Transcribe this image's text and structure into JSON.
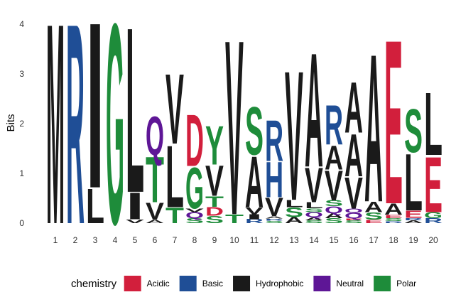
{
  "chart_data": {
    "type": "sequence-logo",
    "ylabel": "Bits",
    "xlabel": "",
    "ylim": [
      0,
      4
    ],
    "y_ticks": [
      "0",
      "1",
      "2",
      "3",
      "4"
    ],
    "positions": [
      "1",
      "2",
      "3",
      "4",
      "5",
      "6",
      "7",
      "8",
      "9",
      "10",
      "11",
      "12",
      "13",
      "14",
      "15",
      "16",
      "17",
      "18",
      "19",
      "20"
    ],
    "legend": {
      "title": "chemistry",
      "position": "bottom",
      "entries": [
        {
          "label": "Acidic",
          "color": "#D21F3C"
        },
        {
          "label": "Basic",
          "color": "#1F4E96"
        },
        {
          "label": "Hydrophobic",
          "color": "#1A1A1A"
        },
        {
          "label": "Neutral",
          "color": "#5E1696"
        },
        {
          "label": "Polar",
          "color": "#1E8C3A"
        }
      ]
    },
    "stacks": [
      [
        {
          "letter": "M",
          "bits": 4.15,
          "chem": "Hydrophobic"
        }
      ],
      [
        {
          "letter": "R",
          "bits": 4.15,
          "chem": "Basic"
        }
      ],
      [
        {
          "letter": "L",
          "bits": 0.72,
          "chem": "Hydrophobic"
        },
        {
          "letter": "I",
          "bits": 3.43,
          "chem": "Hydrophobic"
        }
      ],
      [
        {
          "letter": "G",
          "bits": 4.15,
          "chem": "Polar"
        }
      ],
      [
        {
          "letter": "V",
          "bits": 0.08,
          "chem": "Hydrophobic"
        },
        {
          "letter": "I",
          "bits": 0.55,
          "chem": "Hydrophobic"
        },
        {
          "letter": "L",
          "bits": 3.42,
          "chem": "Hydrophobic"
        }
      ],
      [
        {
          "letter": "A",
          "bits": 0.07,
          "chem": "Hydrophobic"
        },
        {
          "letter": "V",
          "bits": 0.35,
          "chem": "Hydrophobic"
        },
        {
          "letter": "T",
          "bits": 0.95,
          "chem": "Polar"
        },
        {
          "letter": "Q",
          "bits": 0.8,
          "chem": "Neutral"
        }
      ],
      [
        {
          "letter": "T",
          "bits": 0.32,
          "chem": "Polar"
        },
        {
          "letter": "L",
          "bits": 1.28,
          "chem": "Hydrophobic"
        },
        {
          "letter": "V",
          "bits": 1.45,
          "chem": "Hydrophobic"
        }
      ],
      [
        {
          "letter": "S",
          "bits": 0.1,
          "chem": "Polar"
        },
        {
          "letter": "Q",
          "bits": 0.12,
          "chem": "Neutral"
        },
        {
          "letter": "V",
          "bits": 0.08,
          "chem": "Hydrophobic"
        },
        {
          "letter": "G",
          "bits": 0.85,
          "chem": "Polar"
        },
        {
          "letter": "D",
          "bits": 1.07,
          "chem": "Acidic"
        }
      ],
      [
        {
          "letter": "S",
          "bits": 0.15,
          "chem": "Polar"
        },
        {
          "letter": "D",
          "bits": 0.18,
          "chem": "Acidic"
        },
        {
          "letter": "T",
          "bits": 0.22,
          "chem": "Polar"
        },
        {
          "letter": "V",
          "bits": 0.63,
          "chem": "Hydrophobic"
        },
        {
          "letter": "Y",
          "bits": 0.8,
          "chem": "Polar"
        }
      ],
      [
        {
          "letter": "T",
          "bits": 0.18,
          "chem": "Polar"
        },
        {
          "letter": "V",
          "bits": 3.62,
          "chem": "Hydrophobic"
        }
      ],
      [
        {
          "letter": "R",
          "bits": 0.08,
          "chem": "Basic"
        },
        {
          "letter": "I",
          "bits": 0.1,
          "chem": "Hydrophobic"
        },
        {
          "letter": "V",
          "bits": 0.15,
          "chem": "Hydrophobic"
        },
        {
          "letter": "A",
          "bits": 1.05,
          "chem": "Hydrophobic"
        },
        {
          "letter": "S",
          "bits": 0.99,
          "chem": "Polar"
        }
      ],
      [
        {
          "letter": "S",
          "bits": 0.05,
          "chem": "Polar"
        },
        {
          "letter": "R",
          "bits": 0.04,
          "chem": "Basic"
        },
        {
          "letter": "A",
          "bits": 0.05,
          "chem": "Hydrophobic"
        },
        {
          "letter": "V",
          "bits": 0.38,
          "chem": "Hydrophobic"
        },
        {
          "letter": "H",
          "bits": 0.73,
          "chem": "Basic"
        },
        {
          "letter": "R",
          "bits": 0.85,
          "chem": "Basic"
        }
      ],
      [
        {
          "letter": "A",
          "bits": 0.12,
          "chem": "Hydrophobic"
        },
        {
          "letter": "S",
          "bits": 0.2,
          "chem": "Polar"
        },
        {
          "letter": "L",
          "bits": 0.15,
          "chem": "Hydrophobic"
        },
        {
          "letter": "V",
          "bits": 2.68,
          "chem": "Hydrophobic"
        }
      ],
      [
        {
          "letter": "S",
          "bits": 0.06,
          "chem": "Polar"
        },
        {
          "letter": "A",
          "bits": 0.06,
          "chem": "Hydrophobic"
        },
        {
          "letter": "Q",
          "bits": 0.1,
          "chem": "Neutral"
        },
        {
          "letter": "S",
          "bits": 0.08,
          "chem": "Polar"
        },
        {
          "letter": "L",
          "bits": 0.12,
          "chem": "Hydrophobic"
        },
        {
          "letter": "V",
          "bits": 0.72,
          "chem": "Hydrophobic"
        },
        {
          "letter": "A",
          "bits": 2.36,
          "chem": "Hydrophobic"
        }
      ],
      [
        {
          "letter": "S",
          "bits": 0.1,
          "chem": "Polar"
        },
        {
          "letter": "A",
          "bits": 0.1,
          "chem": "Hydrophobic"
        },
        {
          "letter": "Q",
          "bits": 0.14,
          "chem": "Neutral"
        },
        {
          "letter": "S",
          "bits": 0.12,
          "chem": "Polar"
        },
        {
          "letter": "V",
          "bits": 0.62,
          "chem": "Hydrophobic"
        },
        {
          "letter": "A",
          "bits": 0.5,
          "chem": "Hydrophobic"
        },
        {
          "letter": "R",
          "bits": 0.82,
          "chem": "Basic"
        }
      ],
      [
        {
          "letter": "S",
          "bits": 0.06,
          "chem": "Polar"
        },
        {
          "letter": "E",
          "bits": 0.04,
          "chem": "Acidic"
        },
        {
          "letter": "Q",
          "bits": 0.11,
          "chem": "Neutral"
        },
        {
          "letter": "Q",
          "bits": 0.08,
          "chem": "Neutral"
        },
        {
          "letter": "V",
          "bits": 0.65,
          "chem": "Hydrophobic"
        },
        {
          "letter": "A",
          "bits": 0.88,
          "chem": "Hydrophobic"
        },
        {
          "letter": "A",
          "bits": 1.05,
          "chem": "Hydrophobic"
        }
      ],
      [
        {
          "letter": "E",
          "bits": 0.07,
          "chem": "Acidic"
        },
        {
          "letter": "S",
          "bits": 0.15,
          "chem": "Polar"
        },
        {
          "letter": "A",
          "bits": 0.22,
          "chem": "Hydrophobic"
        },
        {
          "letter": "A",
          "bits": 3.06,
          "chem": "Hydrophobic"
        }
      ],
      [
        {
          "letter": "R",
          "bits": 0.04,
          "chem": "Basic"
        },
        {
          "letter": "S",
          "bits": 0.06,
          "chem": "Polar"
        },
        {
          "letter": "E",
          "bits": 0.07,
          "chem": "Acidic"
        },
        {
          "letter": "A",
          "bits": 0.23,
          "chem": "Hydrophobic"
        },
        {
          "letter": "E",
          "bits": 3.4,
          "chem": "Acidic"
        }
      ],
      [
        {
          "letter": "A",
          "bits": 0.06,
          "chem": "Hydrophobic"
        },
        {
          "letter": "R",
          "bits": 0.05,
          "chem": "Basic"
        },
        {
          "letter": "E",
          "bits": 0.15,
          "chem": "Acidic"
        },
        {
          "letter": "L",
          "bits": 1.17,
          "chem": "Hydrophobic"
        },
        {
          "letter": "S",
          "bits": 0.9,
          "chem": "Polar"
        }
      ],
      [
        {
          "letter": "R",
          "bits": 0.1,
          "chem": "Basic"
        },
        {
          "letter": "G",
          "bits": 0.12,
          "chem": "Polar"
        },
        {
          "letter": "E",
          "bits": 1.15,
          "chem": "Acidic"
        },
        {
          "letter": "L",
          "bits": 1.3,
          "chem": "Hydrophobic"
        }
      ]
    ]
  }
}
